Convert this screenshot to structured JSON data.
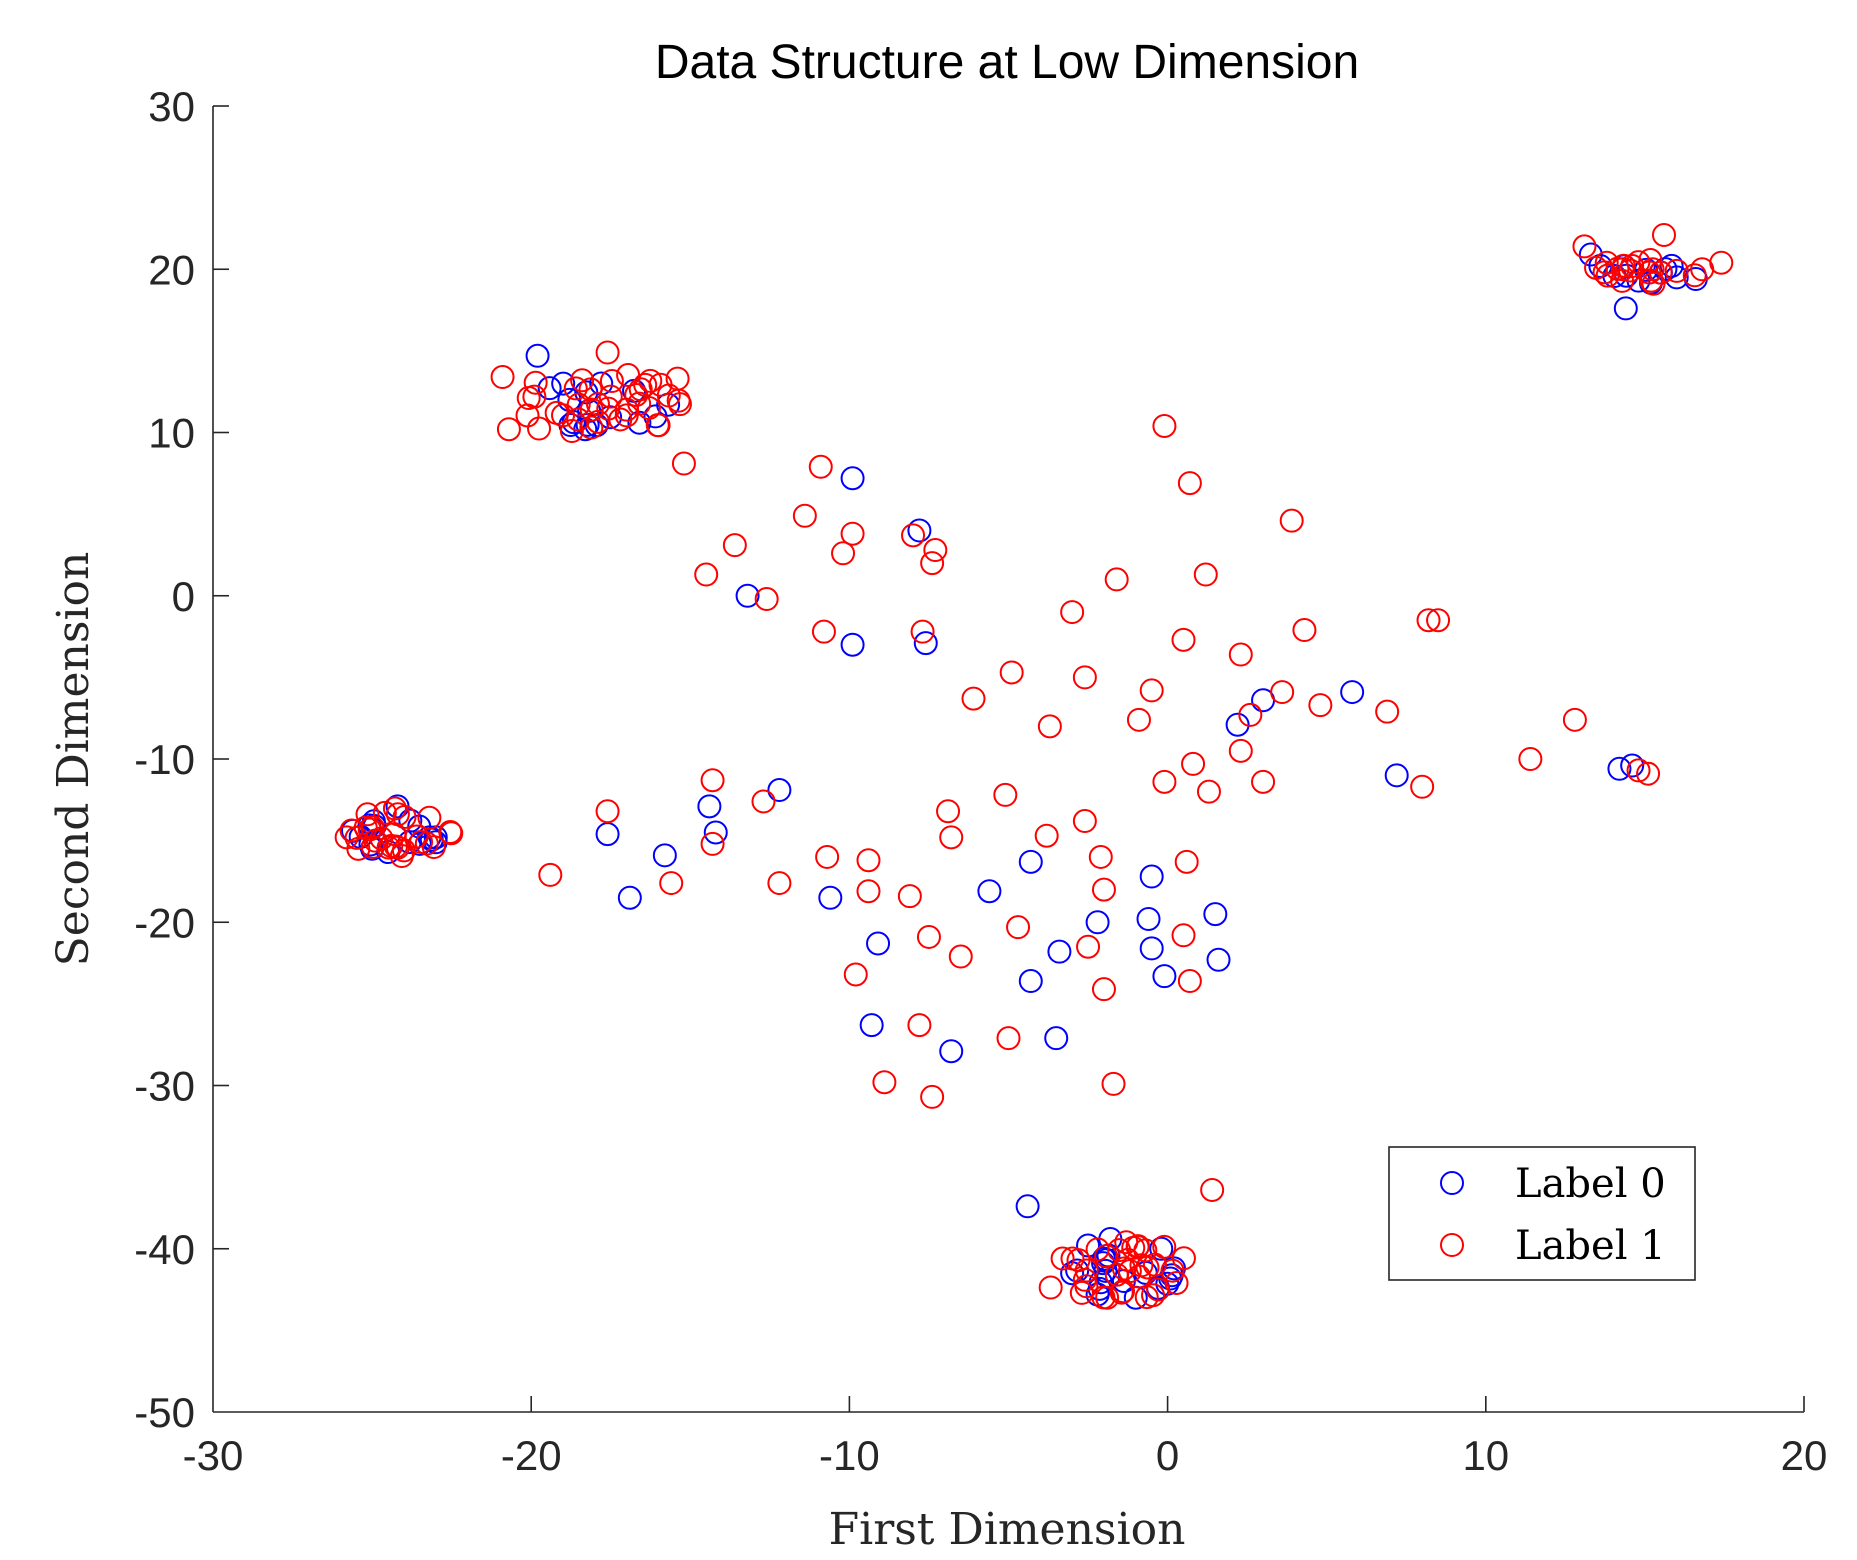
{
  "chart_data": {
    "type": "scatter",
    "title": "Data Structure at Low Dimension",
    "xlabel": "First Dimension",
    "ylabel": "Second Dimension",
    "xlim": [
      -30,
      20
    ],
    "ylim": [
      -50,
      30
    ],
    "xticks": [
      -30,
      -20,
      -10,
      0,
      10,
      20
    ],
    "yticks": [
      -50,
      -40,
      -30,
      -20,
      -10,
      0,
      10,
      20,
      30
    ],
    "legend_position": "bottom-right",
    "marker": "open-circle",
    "series": [
      {
        "name": "Label 0",
        "color": "#0000ff",
        "points": [
          [
            -19.8,
            14.7
          ],
          [
            -18.3,
            10.2
          ],
          [
            -16.6,
            10.6
          ],
          [
            -17.8,
            13.0
          ],
          [
            -18.8,
            12.0
          ],
          [
            -9.9,
            7.2
          ],
          [
            -7.8,
            4.0
          ],
          [
            -13.2,
            0.0
          ],
          [
            -9.9,
            -3.0
          ],
          [
            -7.6,
            -2.9
          ],
          [
            -25.6,
            -14.4
          ],
          [
            -23.0,
            -14.8
          ],
          [
            -24.2,
            -12.9
          ],
          [
            -25.0,
            -15.5
          ],
          [
            -23.5,
            -15.2
          ],
          [
            -17.6,
            -14.6
          ],
          [
            -16.9,
            -18.5
          ],
          [
            -15.8,
            -15.9
          ],
          [
            -14.4,
            -12.9
          ],
          [
            -14.2,
            -14.5
          ],
          [
            -12.2,
            -11.9
          ],
          [
            -10.6,
            -18.5
          ],
          [
            -9.1,
            -21.3
          ],
          [
            -9.3,
            -26.3
          ],
          [
            -6.8,
            -27.9
          ],
          [
            -5.6,
            -18.1
          ],
          [
            -4.3,
            -16.3
          ],
          [
            -4.3,
            -23.6
          ],
          [
            -3.4,
            -21.8
          ],
          [
            -3.5,
            -27.1
          ],
          [
            -2.2,
            -20.0
          ],
          [
            -0.5,
            -17.2
          ],
          [
            -0.6,
            -19.8
          ],
          [
            -0.5,
            -21.6
          ],
          [
            -0.1,
            -23.3
          ],
          [
            1.5,
            -19.5
          ],
          [
            1.6,
            -22.3
          ],
          [
            2.2,
            -7.9
          ],
          [
            3.0,
            -6.4
          ],
          [
            5.8,
            -5.9
          ],
          [
            7.2,
            -11.0
          ],
          [
            14.2,
            -10.6
          ],
          [
            14.6,
            -10.4
          ],
          [
            14.4,
            17.6
          ],
          [
            13.3,
            20.9
          ],
          [
            13.6,
            20.2
          ],
          [
            14.8,
            19.3
          ],
          [
            16.0,
            19.5
          ],
          [
            16.6,
            19.4
          ],
          [
            -4.4,
            -37.4
          ],
          [
            -2.5,
            -39.8
          ],
          [
            -1.8,
            -39.4
          ],
          [
            -2.2,
            -42.8
          ],
          [
            -1.0,
            -43.0
          ],
          [
            -0.3,
            -42.4
          ],
          [
            0.2,
            -41.2
          ],
          [
            -0.2,
            -40.0
          ],
          [
            -3.0,
            -41.5
          ]
        ]
      },
      {
        "name": "Label 1",
        "color": "#ff0000",
        "points": [
          [
            -20.9,
            13.4
          ],
          [
            -20.7,
            10.2
          ],
          [
            -17.6,
            14.9
          ],
          [
            -15.4,
            13.3
          ],
          [
            -15.2,
            8.1
          ],
          [
            -19.9,
            12.2
          ],
          [
            -19.2,
            11.2
          ],
          [
            -18.6,
            12.7
          ],
          [
            -18.1,
            11.4
          ],
          [
            -17.5,
            12.2
          ],
          [
            -17.0,
            11.4
          ],
          [
            -16.7,
            12.3
          ],
          [
            -16.3,
            11.5
          ],
          [
            -18.4,
            13.2
          ],
          [
            -17.2,
            10.8
          ],
          [
            -10.9,
            7.9
          ],
          [
            -11.4,
            4.9
          ],
          [
            -9.9,
            3.8
          ],
          [
            -10.2,
            2.6
          ],
          [
            -8.0,
            3.7
          ],
          [
            -7.3,
            2.8
          ],
          [
            -7.4,
            2.0
          ],
          [
            -13.6,
            3.1
          ],
          [
            -14.5,
            1.3
          ],
          [
            -12.6,
            -0.2
          ],
          [
            -10.8,
            -2.2
          ],
          [
            -7.7,
            -2.2
          ],
          [
            -0.1,
            10.4
          ],
          [
            0.7,
            6.9
          ],
          [
            3.9,
            4.6
          ],
          [
            1.2,
            1.3
          ],
          [
            -1.6,
            1.0
          ],
          [
            -3.0,
            -1.0
          ],
          [
            0.5,
            -2.7
          ],
          [
            2.3,
            -3.6
          ],
          [
            4.3,
            -2.1
          ],
          [
            -4.9,
            -4.7
          ],
          [
            -2.6,
            -5.0
          ],
          [
            -0.5,
            -5.8
          ],
          [
            -6.1,
            -6.3
          ],
          [
            -3.7,
            -8.0
          ],
          [
            -0.9,
            -7.6
          ],
          [
            2.6,
            -7.3
          ],
          [
            3.6,
            -5.9
          ],
          [
            4.8,
            -6.7
          ],
          [
            6.9,
            -7.1
          ],
          [
            8.2,
            -1.5
          ],
          [
            8.5,
            -1.5
          ],
          [
            0.8,
            -10.3
          ],
          [
            -0.1,
            -11.4
          ],
          [
            1.3,
            -12.0
          ],
          [
            2.3,
            -9.5
          ],
          [
            3.0,
            -11.4
          ],
          [
            8.0,
            -11.7
          ],
          [
            11.4,
            -10.0
          ],
          [
            12.8,
            -7.6
          ],
          [
            14.8,
            -10.7
          ],
          [
            15.1,
            -10.9
          ],
          [
            -14.3,
            -11.3
          ],
          [
            -14.3,
            -15.2
          ],
          [
            -12.7,
            -12.6
          ],
          [
            -12.2,
            -17.6
          ],
          [
            -15.6,
            -17.6
          ],
          [
            -17.6,
            -13.2
          ],
          [
            -19.4,
            -17.1
          ],
          [
            -10.7,
            -16.0
          ],
          [
            -9.4,
            -16.2
          ],
          [
            -9.4,
            -18.1
          ],
          [
            -8.1,
            -18.4
          ],
          [
            -7.5,
            -20.9
          ],
          [
            -6.5,
            -22.1
          ],
          [
            -6.9,
            -13.2
          ],
          [
            -6.8,
            -14.8
          ],
          [
            -5.1,
            -12.2
          ],
          [
            -4.7,
            -20.3
          ],
          [
            -3.8,
            -14.7
          ],
          [
            -2.6,
            -13.8
          ],
          [
            -2.1,
            -16.0
          ],
          [
            -2.0,
            -18.0
          ],
          [
            -2.5,
            -21.5
          ],
          [
            -2.0,
            -24.1
          ],
          [
            -9.8,
            -23.2
          ],
          [
            -7.8,
            -26.3
          ],
          [
            -8.9,
            -29.8
          ],
          [
            -7.4,
            -30.7
          ],
          [
            -5.0,
            -27.1
          ],
          [
            -1.7,
            -29.9
          ],
          [
            0.6,
            -16.3
          ],
          [
            0.5,
            -20.8
          ],
          [
            0.7,
            -23.6
          ],
          [
            1.4,
            -36.4
          ],
          [
            -25.2,
            -14.2
          ],
          [
            -24.6,
            -13.3
          ],
          [
            -24.0,
            -15.6
          ],
          [
            -23.2,
            -13.6
          ],
          [
            -24.9,
            -15.0
          ],
          [
            -24.3,
            -14.6
          ],
          [
            -25.8,
            -14.8
          ],
          [
            -3.3,
            -40.6
          ],
          [
            -2.6,
            -41.9
          ],
          [
            -1.9,
            -43.0
          ],
          [
            -1.3,
            -39.6
          ],
          [
            -0.9,
            -41.7
          ],
          [
            -1.4,
            -42.6
          ],
          [
            -2.8,
            -40.7
          ],
          [
            -0.7,
            -40.1
          ],
          [
            -0.3,
            -42.5
          ],
          [
            13.1,
            21.4
          ],
          [
            13.8,
            20.4
          ],
          [
            14.3,
            20.0
          ],
          [
            15.6,
            22.1
          ],
          [
            16.0,
            19.9
          ],
          [
            16.8,
            20.0
          ],
          [
            17.4,
            20.4
          ],
          [
            15.2,
            19.3
          ],
          [
            14.6,
            20.2
          ]
        ],
        "clusters": [
          {
            "center": [
              -18.0,
              11.7
            ],
            "rx": 2.8,
            "ry": 2.0,
            "count": 26
          },
          {
            "center": [
              -24.3,
              -14.4
            ],
            "rx": 1.8,
            "ry": 1.6,
            "count": 22
          },
          {
            "center": [
              -1.6,
              -41.3
            ],
            "rx": 2.7,
            "ry": 1.8,
            "count": 26
          },
          {
            "center": [
              15.0,
              19.8
            ],
            "rx": 1.8,
            "ry": 0.8,
            "count": 14
          }
        ]
      }
    ],
    "blue_clusters": [
      {
        "center": [
          -18.0,
          11.7
        ],
        "rx": 2.4,
        "ry": 1.7,
        "count": 12
      },
      {
        "center": [
          -24.3,
          -14.4
        ],
        "rx": 1.6,
        "ry": 1.4,
        "count": 12
      },
      {
        "center": [
          -1.1,
          -41.3
        ],
        "rx": 2.1,
        "ry": 1.4,
        "count": 14
      },
      {
        "center": [
          14.8,
          19.8
        ],
        "rx": 1.5,
        "ry": 0.7,
        "count": 8
      }
    ]
  }
}
